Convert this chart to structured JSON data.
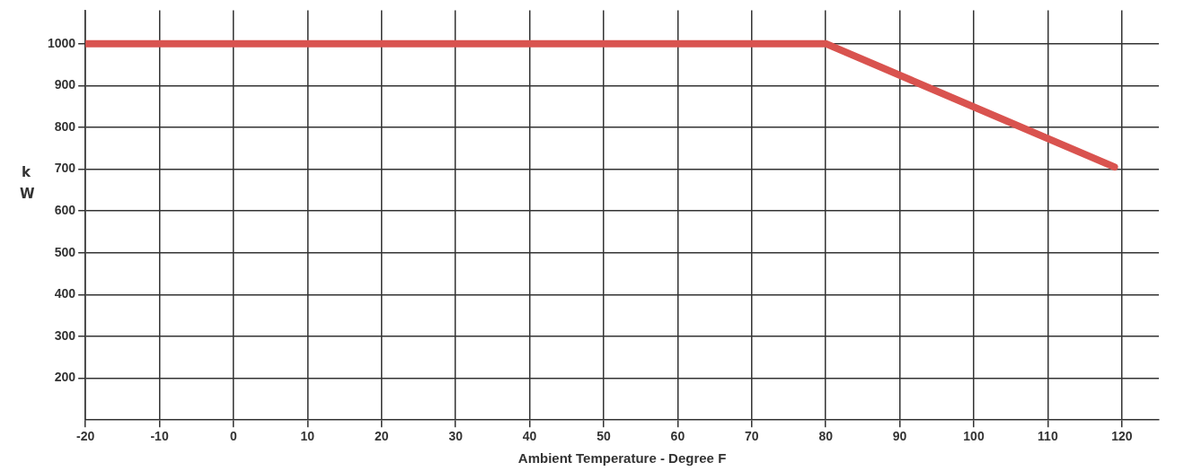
{
  "chart_data": {
    "type": "line",
    "xlabel": "Ambient Temperature - Degree F",
    "ylabel": "kW",
    "x": [
      -20,
      80,
      119
    ],
    "values": [
      1000,
      1000,
      705
    ],
    "color": "#d9534f",
    "xlim": [
      -20,
      125
    ],
    "xticks": [
      -20,
      -10,
      0,
      10,
      20,
      30,
      40,
      50,
      60,
      70,
      80,
      90,
      100,
      110,
      120
    ],
    "ylim": [
      100,
      1080
    ],
    "yticks": [
      200,
      300,
      400,
      500,
      600,
      700,
      800,
      900,
      1000
    ],
    "grid": true,
    "marker": "none",
    "line_style": "solid"
  }
}
